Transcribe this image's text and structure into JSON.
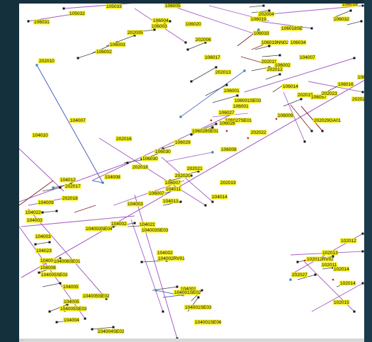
{
  "colors": {
    "main_line": "#a45fc4",
    "blue_line": "#5b6dc4",
    "red_line": "#8a2a2a",
    "spur_line": "#444444",
    "label_bg": "#f3ee1a",
    "node": "#111111",
    "accent_node": "#3a8ab8",
    "red_node": "#d02020"
  },
  "status_bar": {
    "text": "..."
  },
  "labels": [
    "105033",
    "106005",
    "106018",
    "105032",
    "106031",
    "106004",
    "106003",
    "106020",
    "202004",
    "106019",
    "106018SE",
    "106032",
    "202005",
    "106033",
    "106003",
    "202006",
    "106019NN02",
    "106034",
    "106002",
    "106017",
    "104007",
    "202010",
    "202011",
    "202012",
    "106002",
    "202013",
    "106014",
    "106016",
    "106015",
    "106001",
    "106001SE03",
    "106001",
    "202015",
    "106057",
    "202023",
    "106027",
    "106027SE01",
    "202024",
    "202029GA01",
    "106028",
    "106009",
    "202022",
    "106028SE01",
    "104007",
    "104010",
    "202016",
    "106029",
    "106008",
    "106030",
    "106030",
    "202018",
    "104008",
    "202021",
    "202020",
    "106007",
    "202019",
    "104011",
    "104012",
    "202017",
    "106007",
    "104014",
    "104009",
    "202018",
    "104013",
    "104022",
    "104003",
    "104003",
    "104003SE04",
    "104002",
    "104003SE03",
    "104022",
    "104003",
    "104023",
    "104002",
    "104006",
    "104006SE01",
    "104008",
    "104005SE03",
    "104002RV01",
    "102012",
    "102013",
    "102011",
    "102012RV02",
    "104005",
    "102014",
    "202027",
    "104005SE02",
    "104001",
    "104001SE02",
    "104005",
    "102014",
    "104005SE03",
    "102015",
    "104001SE03",
    "104004",
    "104001SE06",
    "104004SE02"
  ]
}
